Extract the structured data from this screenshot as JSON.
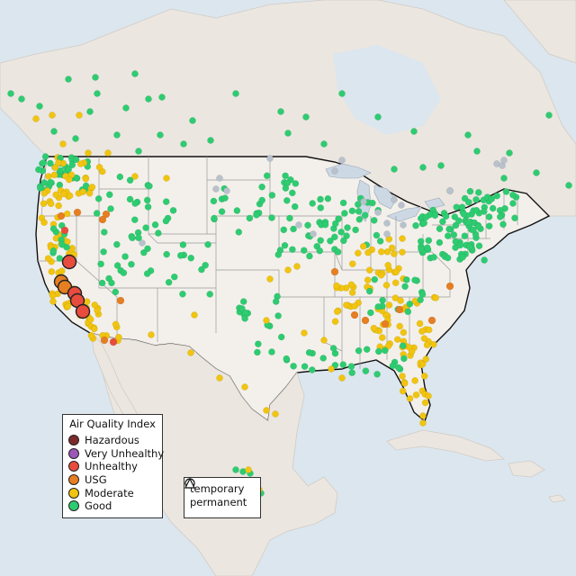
{
  "legend_aqi": {
    "title": "Air Quality Index",
    "items": [
      {
        "label": "Hazardous",
        "color": "#7e2a2a"
      },
      {
        "label": "Very Unhealthy",
        "color": "#9b59b6"
      },
      {
        "label": "Unhealthy",
        "color": "#e84c3d"
      },
      {
        "label": "USG",
        "color": "#e67e22"
      },
      {
        "label": "Moderate",
        "color": "#f1c40f"
      },
      {
        "label": "Good",
        "color": "#2ecc71"
      }
    ]
  },
  "legend_type": {
    "items": [
      {
        "label": "temporary",
        "shape": "circle-icon"
      },
      {
        "label": "permanent",
        "shape": "triangle-icon"
      }
    ]
  },
  "colors": {
    "ocean": "#dce6ee",
    "land": "#ece8e2",
    "us_land": "#f2efea",
    "state_border": "#9a9a9a",
    "national_border": "#111111",
    "lakes": "#ccd8e4",
    "no_data_marker": "#b9c2cc"
  }
}
